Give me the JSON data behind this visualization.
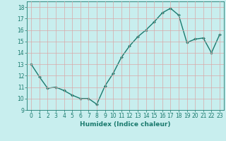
{
  "x": [
    0,
    1,
    2,
    3,
    4,
    5,
    6,
    7,
    8,
    9,
    10,
    11,
    12,
    13,
    14,
    15,
    16,
    17,
    18,
    19,
    20,
    21,
    22,
    23
  ],
  "y": [
    13,
    11.9,
    10.9,
    11.0,
    10.7,
    10.3,
    10.0,
    10.0,
    9.5,
    11.1,
    12.2,
    13.6,
    14.6,
    15.4,
    16.0,
    16.7,
    17.5,
    17.9,
    17.3,
    14.9,
    15.2,
    15.3,
    14.0,
    15.6
  ],
  "line_color": "#1a7a6e",
  "marker": "D",
  "marker_size": 2,
  "bg_color": "#c8eeee",
  "grid_color": "#d8a8a8",
  "xlabel": "Humidex (Indice chaleur)",
  "xlim": [
    -0.5,
    23.5
  ],
  "ylim": [
    9,
    18.5
  ],
  "yticks": [
    9,
    10,
    11,
    12,
    13,
    14,
    15,
    16,
    17,
    18
  ],
  "xticks": [
    0,
    1,
    2,
    3,
    4,
    5,
    6,
    7,
    8,
    9,
    10,
    11,
    12,
    13,
    14,
    15,
    16,
    17,
    18,
    19,
    20,
    21,
    22,
    23
  ],
  "tick_fontsize": 5.5,
  "label_fontsize": 6.5,
  "line_width": 1.0
}
